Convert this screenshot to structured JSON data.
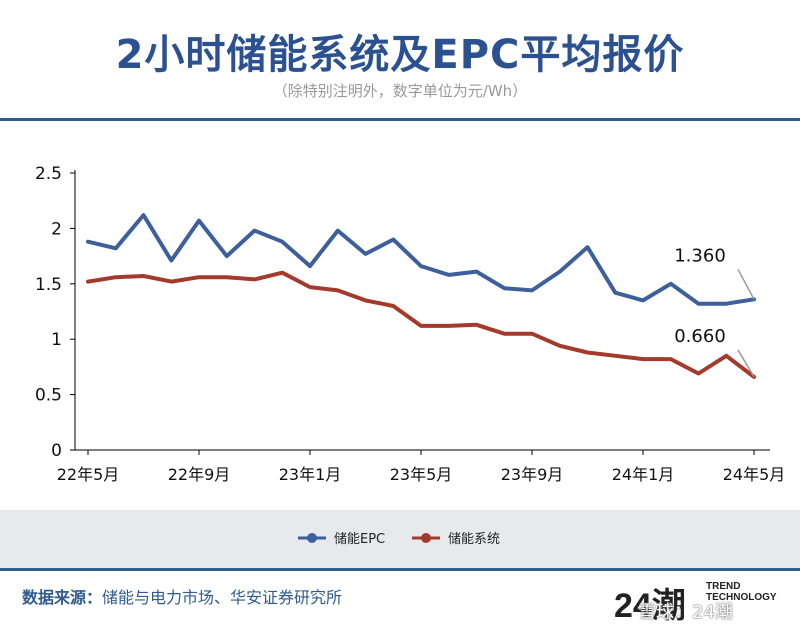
{
  "header": {
    "title": "2小时储能系统及EPC平均报价",
    "subtitle": "（除特别注明外，数字单位为元/Wh）"
  },
  "colors": {
    "title": "#2c5190",
    "epc_line": "#3d5f9b",
    "system_line": "#a33a2b",
    "rule": "#2f5b8e"
  },
  "chart_data": {
    "type": "line",
    "x": [
      "22年5月",
      "22年6月",
      "22年7月",
      "22年8月",
      "22年9月",
      "22年10月",
      "22年11月",
      "22年12月",
      "23年1月",
      "23年2月",
      "23年3月",
      "23年4月",
      "23年5月",
      "23年6月",
      "23年7月",
      "23年8月",
      "23年9月",
      "23年10月",
      "23年11月",
      "23年12月",
      "24年1月",
      "24年2月",
      "24年3月",
      "24年4月",
      "24年5月"
    ],
    "x_tick_labels": [
      {
        "index": 0,
        "label": "22年5月"
      },
      {
        "index": 4,
        "label": "22年9月"
      },
      {
        "index": 8,
        "label": "23年1月"
      },
      {
        "index": 12,
        "label": "23年5月"
      },
      {
        "index": 16,
        "label": "23年9月"
      },
      {
        "index": 20,
        "label": "24年1月"
      },
      {
        "index": 24,
        "label": "24年5月"
      }
    ],
    "y_ticks": [
      "0",
      "0.5",
      "1",
      "1.5",
      "2",
      "2.5"
    ],
    "ylim": [
      0,
      2.5
    ],
    "series": [
      {
        "name": "储能EPC",
        "color": "#3d5f9b",
        "values": [
          1.88,
          1.82,
          2.12,
          1.71,
          2.07,
          1.75,
          1.98,
          1.88,
          1.66,
          1.98,
          1.77,
          1.9,
          1.66,
          1.58,
          1.61,
          1.46,
          1.44,
          1.61,
          1.83,
          1.42,
          1.35,
          1.5,
          1.32,
          1.32,
          1.36
        ],
        "end_label": "1.360"
      },
      {
        "name": "储能系统",
        "color": "#a33a2b",
        "values": [
          1.52,
          1.56,
          1.57,
          1.52,
          1.56,
          1.56,
          1.54,
          1.6,
          1.47,
          1.44,
          1.35,
          1.3,
          1.12,
          1.12,
          1.13,
          1.05,
          1.05,
          0.94,
          0.88,
          0.85,
          0.82,
          0.82,
          0.69,
          0.85,
          0.66
        ],
        "end_label": "0.660"
      }
    ],
    "legend_position": "bottom"
  },
  "footer": {
    "source_label": "数据来源：",
    "source_text": "储能与电力市场、华安证券研究所",
    "brand_number": "24",
    "brand_glyph": "潮",
    "brand_trend": "TREND",
    "brand_technology": "TECHNOLOGY",
    "watermark": "雪球：24潮"
  }
}
